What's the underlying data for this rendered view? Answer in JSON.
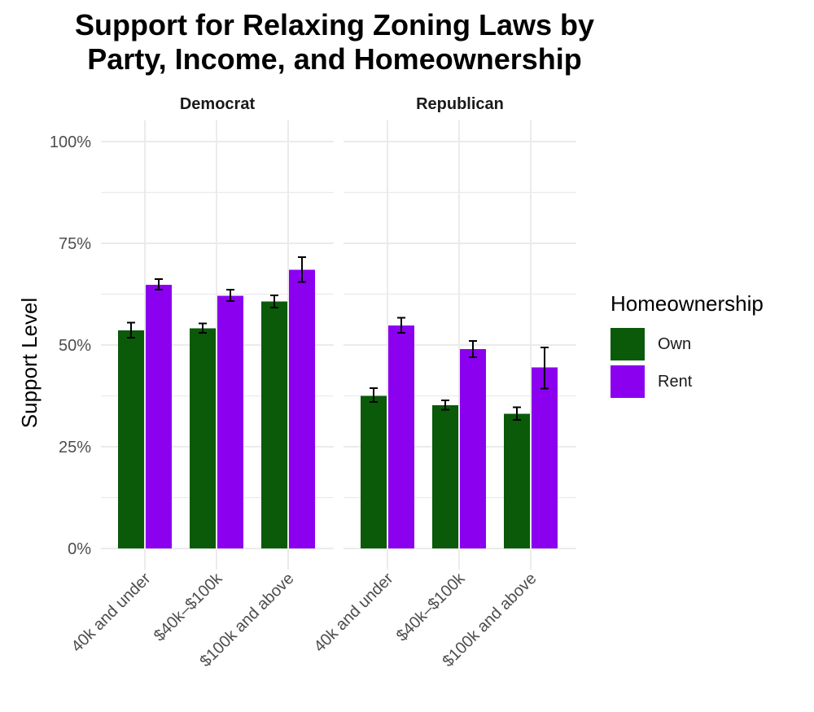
{
  "title_lines": [
    "Support for Relaxing Zoning Laws by",
    "Party, Income, and Homeownership"
  ],
  "colors": {
    "Own": "#0a5a0a",
    "Rent": "#8c00f0",
    "grid": "#ebebeb",
    "errorbar": "#000000"
  },
  "chart_data": {
    "type": "bar",
    "title": "Support for Relaxing Zoning Laws by Party, Income, and Homeownership",
    "ylabel": "Support Level",
    "xlabel": "",
    "ylim": [
      0,
      1
    ],
    "yticks": [
      0,
      0.25,
      0.5,
      0.75,
      1.0
    ],
    "ytick_labels": [
      "0%",
      "25%",
      "50%",
      "75%",
      "100%"
    ],
    "legend": {
      "title": "Homeownership",
      "position": "right",
      "entries": [
        "Own",
        "Rent"
      ]
    },
    "grid": true,
    "facets": [
      {
        "label": "Democrat",
        "categories": [
          "40k and under",
          "$40k–$100k",
          "$100k and above"
        ],
        "series": [
          {
            "name": "Own",
            "values": [
              0.536,
              0.541,
              0.607
            ],
            "err_low": [
              0.518,
              0.53,
              0.592
            ],
            "err_high": [
              0.555,
              0.553,
              0.622
            ]
          },
          {
            "name": "Rent",
            "values": [
              0.648,
              0.621,
              0.685
            ],
            "err_low": [
              0.636,
              0.608,
              0.655
            ],
            "err_high": [
              0.662,
              0.636,
              0.716
            ]
          }
        ]
      },
      {
        "label": "Republican",
        "categories": [
          "40k and under",
          "$40k–$100k",
          "$100k and above"
        ],
        "series": [
          {
            "name": "Own",
            "values": [
              0.375,
              0.352,
              0.331
            ],
            "err_low": [
              0.36,
              0.341,
              0.316
            ],
            "err_high": [
              0.394,
              0.364,
              0.347
            ]
          },
          {
            "name": "Rent",
            "values": [
              0.548,
              0.49,
              0.445
            ],
            "err_low": [
              0.53,
              0.47,
              0.393
            ],
            "err_high": [
              0.567,
              0.51,
              0.494
            ]
          }
        ]
      }
    ]
  }
}
